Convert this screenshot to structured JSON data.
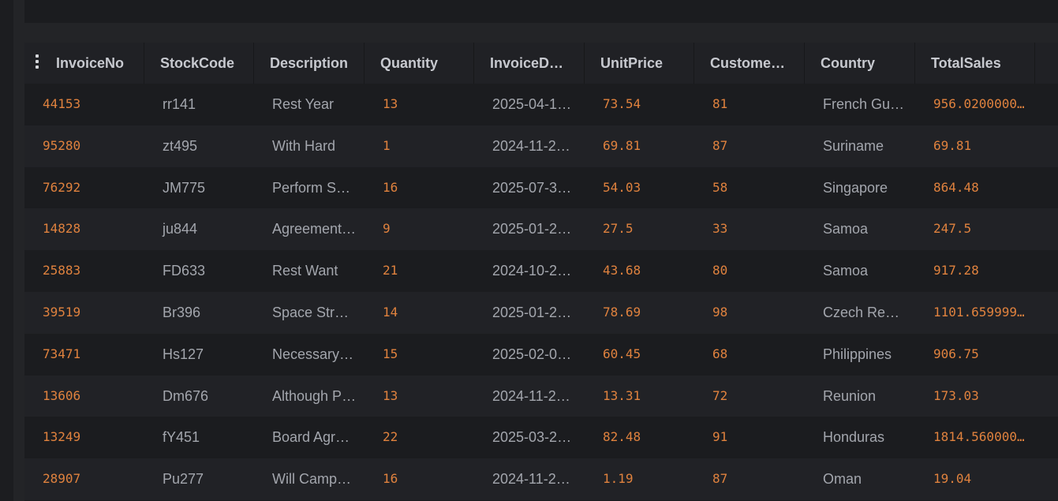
{
  "table": {
    "columns": [
      "InvoiceNo",
      "StockCode",
      "Description",
      "Quantity",
      "InvoiceD…",
      "UnitPrice",
      "Custome…",
      "Country",
      "TotalSales"
    ],
    "rows": [
      [
        "44153",
        "rr141",
        "Rest Year",
        "13",
        "2025-04-1…",
        "73.54",
        "81",
        "French Gu…",
        "956.0200000…"
      ],
      [
        "95280",
        "zt495",
        "With Hard",
        "1",
        "2024-11-2…",
        "69.81",
        "87",
        "Suriname",
        "69.81"
      ],
      [
        "76292",
        "JM775",
        "Perform S…",
        "16",
        "2025-07-3…",
        "54.03",
        "58",
        "Singapore",
        "864.48"
      ],
      [
        "14828",
        "ju844",
        "Agreement…",
        "9",
        "2025-01-2…",
        "27.5",
        "33",
        "Samoa",
        "247.5"
      ],
      [
        "25883",
        "FD633",
        "Rest Want",
        "21",
        "2024-10-2…",
        "43.68",
        "80",
        "Samoa",
        "917.28"
      ],
      [
        "39519",
        "Br396",
        "Space Str…",
        "14",
        "2025-01-2…",
        "78.69",
        "98",
        "Czech Re…",
        "1101.659999…"
      ],
      [
        "73471",
        "Hs127",
        "Necessary…",
        "15",
        "2025-02-0…",
        "60.45",
        "68",
        "Philippines",
        "906.75"
      ],
      [
        "13606",
        "Dm676",
        "Although P…",
        "13",
        "2024-11-2…",
        "13.31",
        "72",
        "Reunion",
        "173.03"
      ],
      [
        "13249",
        "fY451",
        "Board Agr…",
        "22",
        "2025-03-2…",
        "82.48",
        "91",
        "Honduras",
        "1814.560000…"
      ],
      [
        "28907",
        "Pu277",
        "Will Camp…",
        "16",
        "2024-11-2…",
        "1.19",
        "87",
        "Oman",
        "19.04"
      ]
    ]
  },
  "icons": {
    "column_menu": "kebab-menu-icon"
  },
  "colors": {
    "background": "#232427",
    "table_background": "#1b1c1f",
    "header_background": "#202125",
    "header_text": "#c7c9cf",
    "text_cell": "#a3a6ad",
    "numeric_cell": "#e0823e"
  }
}
